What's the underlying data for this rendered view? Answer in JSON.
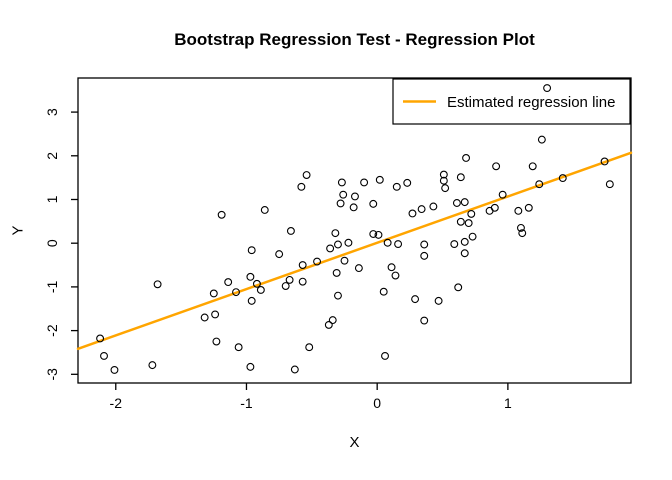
{
  "chart_data": {
    "type": "scatter",
    "title": "Bootstrap Regression Test - Regression Plot",
    "xlabel": "X",
    "ylabel": "Y",
    "xlim": [
      -2.289,
      1.942
    ],
    "ylim": [
      -3.199,
      3.78
    ],
    "x_ticks": [
      "-2",
      "-1",
      "0",
      "1"
    ],
    "x_tick_values": [
      -2,
      -1,
      0,
      1
    ],
    "y_ticks": [
      "-3",
      "-2",
      "-1",
      "0",
      "1",
      "2",
      "3"
    ],
    "y_tick_values": [
      -3,
      -2,
      -1,
      0,
      1,
      2,
      3
    ],
    "grid": false,
    "point_style": {
      "shape": "open-circle",
      "color": "#000000"
    },
    "regression_line": {
      "slope": 1.06,
      "intercept": 0.01,
      "color": "#FFA500"
    },
    "legend": {
      "position": "topright",
      "entries": [
        {
          "label": "Estimated regression line",
          "color": "#FFA500",
          "type": "line"
        }
      ]
    },
    "points": [
      [
        -1.19,
        0.65
      ],
      [
        -0.86,
        0.76
      ],
      [
        -0.54,
        1.56
      ],
      [
        -0.58,
        1.29
      ],
      [
        -0.27,
        1.39
      ],
      [
        -0.26,
        1.11
      ],
      [
        -0.28,
        0.91
      ],
      [
        -0.17,
        1.07
      ],
      [
        -0.18,
        0.82
      ],
      [
        -0.1,
        1.39
      ],
      [
        0.02,
        1.45
      ],
      [
        -0.03,
        0.9
      ],
      [
        0.15,
        1.29
      ],
      [
        0.23,
        1.38
      ],
      [
        0.51,
        1.57
      ],
      [
        0.51,
        1.43
      ],
      [
        0.52,
        1.26
      ],
      [
        0.27,
        0.68
      ],
      [
        0.34,
        0.78
      ],
      [
        0.43,
        0.84
      ],
      [
        1.3,
        3.55
      ],
      [
        1.26,
        2.37
      ],
      [
        0.68,
        1.95
      ],
      [
        0.91,
        1.76
      ],
      [
        1.19,
        1.76
      ],
      [
        1.74,
        1.87
      ],
      [
        0.64,
        1.51
      ],
      [
        1.42,
        1.49
      ],
      [
        1.78,
        1.35
      ],
      [
        1.24,
        1.35
      ],
      [
        0.61,
        0.92
      ],
      [
        0.67,
        0.94
      ],
      [
        0.9,
        0.81
      ],
      [
        0.86,
        0.74
      ],
      [
        1.08,
        0.74
      ],
      [
        1.16,
        0.81
      ],
      [
        0.72,
        0.67
      ],
      [
        0.96,
        1.11
      ],
      [
        0.64,
        0.49
      ],
      [
        0.7,
        0.46
      ],
      [
        -0.96,
        -0.16
      ],
      [
        -1.68,
        -0.94
      ],
      [
        -1.14,
        -0.89
      ],
      [
        -0.97,
        -0.77
      ],
      [
        -0.92,
        -0.93
      ],
      [
        -0.89,
        -1.07
      ],
      [
        -1.25,
        -1.15
      ],
      [
        -1.08,
        -1.12
      ],
      [
        -0.96,
        -1.32
      ],
      [
        -1.32,
        -1.7
      ],
      [
        -1.24,
        -1.63
      ],
      [
        -2.12,
        -2.18
      ],
      [
        -2.09,
        -2.58
      ],
      [
        -2.01,
        -2.9
      ],
      [
        -1.72,
        -2.79
      ],
      [
        -1.23,
        -2.25
      ],
      [
        -1.06,
        -2.38
      ],
      [
        -0.97,
        -2.83
      ],
      [
        -0.66,
        0.28
      ],
      [
        -0.32,
        0.23
      ],
      [
        -0.03,
        0.21
      ],
      [
        0.01,
        0.19
      ],
      [
        -0.75,
        -0.25
      ],
      [
        -0.57,
        -0.5
      ],
      [
        -0.46,
        -0.42
      ],
      [
        -0.36,
        -0.12
      ],
      [
        -0.3,
        -0.03
      ],
      [
        -0.22,
        0.01
      ],
      [
        -0.25,
        -0.4
      ],
      [
        -0.31,
        -0.68
      ],
      [
        -0.14,
        -0.57
      ],
      [
        -0.67,
        -0.84
      ],
      [
        -0.7,
        -0.98
      ],
      [
        -0.57,
        -0.88
      ],
      [
        -0.3,
        -1.2
      ],
      [
        0.05,
        -1.11
      ],
      [
        0.11,
        -0.55
      ],
      [
        0.14,
        -0.74
      ],
      [
        0.29,
        -1.28
      ],
      [
        0.47,
        -1.32
      ],
      [
        0.36,
        -1.77
      ],
      [
        0.06,
        -2.58
      ],
      [
        -0.52,
        -2.38
      ],
      [
        -0.63,
        -2.89
      ],
      [
        -0.34,
        -1.76
      ],
      [
        -0.37,
        -1.87
      ],
      [
        0.08,
        0.01
      ],
      [
        0.16,
        -0.02
      ],
      [
        0.36,
        -0.03
      ],
      [
        0.36,
        -0.29
      ],
      [
        0.59,
        -0.02
      ],
      [
        0.67,
        0.03
      ],
      [
        0.73,
        0.15
      ],
      [
        0.67,
        -0.23
      ],
      [
        0.62,
        -1.01
      ],
      [
        1.1,
        0.35
      ],
      [
        1.11,
        0.23
      ]
    ]
  }
}
